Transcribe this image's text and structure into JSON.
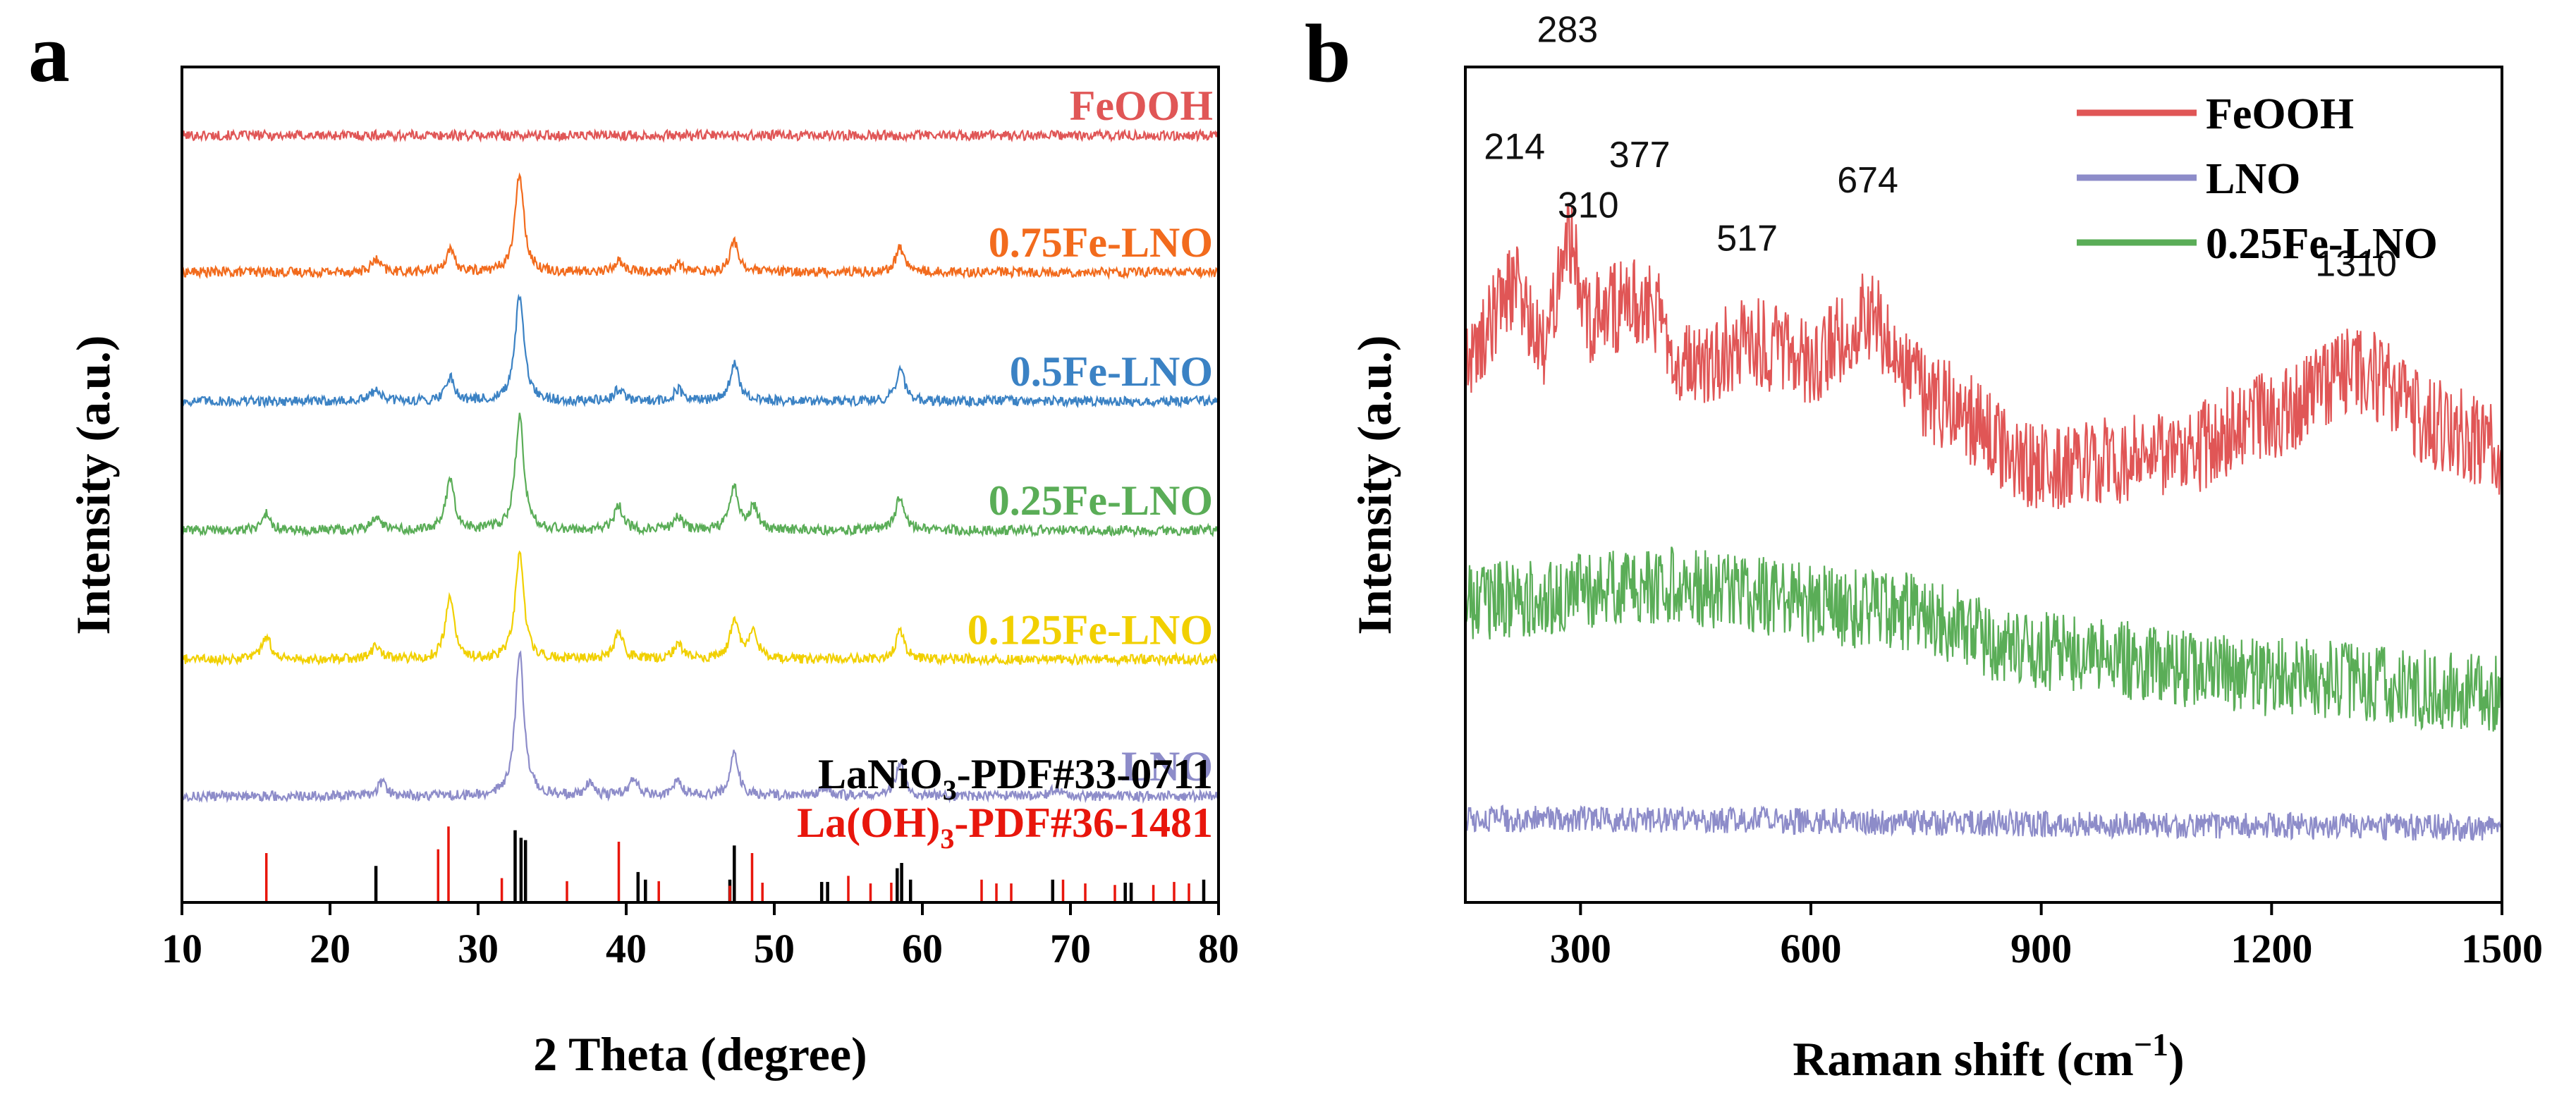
{
  "chart_data": [
    {
      "type": "line",
      "panel_label": "a",
      "xlabel": "2 Theta (degree)",
      "ylabel": "Intensity (a.u.)",
      "xlim": [
        10,
        80
      ],
      "ylim": [
        0,
        110
      ],
      "xticks": [
        10,
        20,
        30,
        40,
        50,
        60,
        70,
        80
      ],
      "baselines": {
        "FeOOH": 101,
        "0.75Fe-LNO": 83,
        "0.5Fe-LNO": 66,
        "0.25Fe-LNO": 49,
        "0.125Fe-LNO": 32,
        "LNO": 14
      },
      "peak_positions_2theta": [
        15.7,
        23.1,
        28.1,
        32.8,
        39.5,
        43.5,
        47.3,
        48.6,
        58.5
      ],
      "series": [
        {
          "name": "FeOOH",
          "label_text": "FeOOH",
          "color": "#e05656",
          "peaks": []
        },
        {
          "name": "0.75Fe-LNO",
          "label_text": "0.75Fe-LNO",
          "color": "#f26b1d",
          "peaks": [
            [
              23.1,
              1.6
            ],
            [
              28.1,
              2.8
            ],
            [
              32.8,
              13
            ],
            [
              39.5,
              1.5
            ],
            [
              43.5,
              1.0
            ],
            [
              47.3,
              4.0
            ],
            [
              58.5,
              3.2
            ]
          ]
        },
        {
          "name": "0.5Fe-LNO",
          "label_text": "0.5Fe-LNO",
          "color": "#3b82c4",
          "peaks": [
            [
              23.1,
              1.6
            ],
            [
              28.1,
              3.2
            ],
            [
              32.8,
              14
            ],
            [
              39.5,
              1.6
            ],
            [
              43.5,
              1.5
            ],
            [
              47.3,
              5.0
            ],
            [
              58.5,
              4.2
            ]
          ]
        },
        {
          "name": "0.25Fe-LNO",
          "label_text": "0.25Fe-LNO",
          "color": "#5aad57",
          "peaks": [
            [
              15.7,
              2.2
            ],
            [
              23.1,
              1.8
            ],
            [
              28.1,
              6.5
            ],
            [
              32.8,
              15
            ],
            [
              39.5,
              3.2
            ],
            [
              43.5,
              1.8
            ],
            [
              47.3,
              5.5
            ],
            [
              48.6,
              3.0
            ],
            [
              58.5,
              4.5
            ]
          ]
        },
        {
          "name": "0.125Fe-LNO",
          "label_text": "0.125Fe-LNO",
          "color": "#f1d000",
          "peaks": [
            [
              15.7,
              3.2
            ],
            [
              23.1,
              1.8
            ],
            [
              28.1,
              8.5
            ],
            [
              32.8,
              14
            ],
            [
              39.5,
              3.8
            ],
            [
              43.5,
              2.2
            ],
            [
              47.3,
              5.0
            ],
            [
              48.6,
              3.5
            ],
            [
              58.5,
              3.8
            ]
          ]
        },
        {
          "name": "LNO",
          "label_text": "LNO",
          "color": "#8d8cc9",
          "peaks": [
            [
              23.5,
              1.8
            ],
            [
              32.8,
              19
            ],
            [
              37.5,
              1.5
            ],
            [
              40.5,
              2.2
            ],
            [
              43.5,
              2.0
            ],
            [
              47.3,
              5.5
            ],
            [
              53.5,
              1.2
            ],
            [
              58.5,
              4.5
            ],
            [
              69.0,
              1.0
            ]
          ]
        }
      ],
      "references": [
        {
          "name": "LaNiO3-PDF#33-0711",
          "label_main": "LaNiO",
          "label_sub": "3",
          "label_rest": "-PDF#33-0711",
          "color": "#000000",
          "lines": [
            [
              23.1,
              4.8
            ],
            [
              32.5,
              9.5
            ],
            [
              32.9,
              8.5
            ],
            [
              33.2,
              8.2
            ],
            [
              40.8,
              4.0
            ],
            [
              41.3,
              3.0
            ],
            [
              47.0,
              3.0
            ],
            [
              47.3,
              7.5
            ],
            [
              53.2,
              2.7
            ],
            [
              53.6,
              2.7
            ],
            [
              58.3,
              4.5
            ],
            [
              58.6,
              5.2
            ],
            [
              59.2,
              3.0
            ],
            [
              68.8,
              3.0
            ],
            [
              73.7,
              2.6
            ],
            [
              74.1,
              2.6
            ],
            [
              79.0,
              3.0
            ]
          ]
        },
        {
          "name": "La(OH)3-PDF#36-1481",
          "label_main": "La(OH)",
          "label_sub": "3",
          "label_rest": "-PDF#36-1481",
          "color": "#e8160c",
          "lines": [
            [
              15.7,
              6.5
            ],
            [
              27.3,
              7.0
            ],
            [
              28.0,
              10.0
            ],
            [
              31.6,
              3.2
            ],
            [
              36.0,
              2.8
            ],
            [
              39.5,
              8.0
            ],
            [
              42.2,
              2.8
            ],
            [
              47.0,
              2.2
            ],
            [
              48.5,
              6.5
            ],
            [
              49.2,
              2.6
            ],
            [
              55.0,
              3.5
            ],
            [
              56.5,
              2.5
            ],
            [
              57.9,
              2.6
            ],
            [
              64.0,
              3.0
            ],
            [
              65.0,
              2.5
            ],
            [
              66.0,
              2.5
            ],
            [
              69.5,
              3.0
            ],
            [
              71.0,
              2.5
            ],
            [
              73.0,
              2.3
            ],
            [
              75.6,
              2.3
            ],
            [
              77.0,
              2.7
            ],
            [
              78.0,
              2.5
            ]
          ]
        }
      ]
    },
    {
      "type": "line",
      "panel_label": "b",
      "xlabel_main": "Raman shift (cm",
      "xlabel_sup": "−1",
      "xlabel_end": ")",
      "ylabel": "Intensity (a.u.)",
      "xlim": [
        150,
        1500
      ],
      "ylim": [
        0,
        100
      ],
      "xticks": [
        300,
        600,
        900,
        1200,
        1500
      ],
      "legend_position": "top-right",
      "series": [
        {
          "name": "FeOOH",
          "legend": "FeOOH",
          "color": "#e05656",
          "envelope": [
            [
              150,
              65
            ],
            [
              214,
              74
            ],
            [
              250,
              66
            ],
            [
              283,
              80
            ],
            [
              310,
              70
            ],
            [
              377,
              72
            ],
            [
              450,
              64
            ],
            [
              517,
              67
            ],
            [
              600,
              65
            ],
            [
              674,
              70
            ],
            [
              760,
              60
            ],
            [
              900,
              52
            ],
            [
              1050,
              53
            ],
            [
              1200,
              58
            ],
            [
              1310,
              64
            ],
            [
              1420,
              57
            ],
            [
              1500,
              54
            ]
          ]
        },
        {
          "name": "LNO",
          "legend": "LNO",
          "color": "#8d8cc9",
          "envelope": [
            [
              150,
              10
            ],
            [
              1500,
              9
            ]
          ]
        },
        {
          "name": "0.25Fe-LNO",
          "legend": "0.25Fe-LNO",
          "color": "#5aad57",
          "envelope": [
            [
              150,
              36
            ],
            [
              400,
              38
            ],
            [
              700,
              35
            ],
            [
              900,
              30
            ],
            [
              1200,
              27
            ],
            [
              1500,
              25
            ]
          ]
        }
      ],
      "annotations": [
        {
          "label": "214",
          "x": 214
        },
        {
          "label": "283",
          "x": 283
        },
        {
          "label": "310",
          "x": 310
        },
        {
          "label": "377",
          "x": 377
        },
        {
          "label": "517",
          "x": 517
        },
        {
          "label": "674",
          "x": 674
        },
        {
          "label": "1310",
          "x": 1310
        }
      ]
    }
  ]
}
